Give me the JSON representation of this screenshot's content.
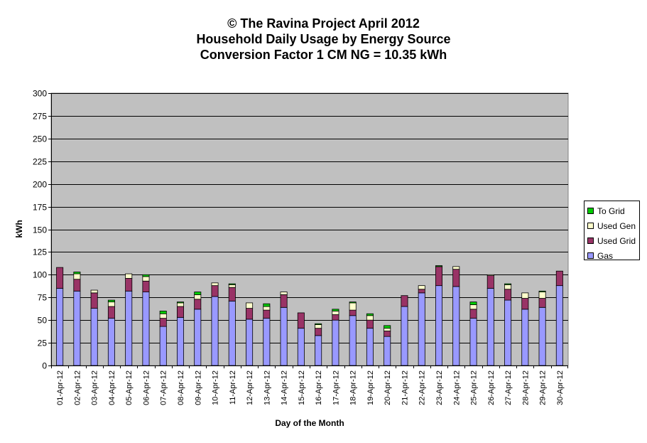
{
  "chart_data": {
    "type": "bar",
    "stacked": true,
    "title": [
      "© The Ravina Project April 2012",
      "Household Daily Usage by Energy Source",
      "Conversion Factor 1 CM NG = 10.35 kWh"
    ],
    "xlabel": "Day of the Month",
    "ylabel": "kWh",
    "ylim": [
      0,
      300
    ],
    "yticks": [
      0,
      25,
      50,
      75,
      100,
      125,
      150,
      175,
      200,
      225,
      250,
      275,
      300
    ],
    "grid": true,
    "plot_background": "#c0c0c0",
    "legend_position": "right",
    "categories": [
      "01-Apr-12",
      "02-Apr-12",
      "03-Apr-12",
      "04-Apr-12",
      "05-Apr-12",
      "06-Apr-12",
      "07-Apr-12",
      "08-Apr-12",
      "09-Apr-12",
      "10-Apr-12",
      "11-Apr-12",
      "12-Apr-12",
      "13-Apr-12",
      "14-Apr-12",
      "15-Apr-12",
      "16-Apr-12",
      "17-Apr-12",
      "18-Apr-12",
      "19-Apr-12",
      "20-Apr-12",
      "21-Apr-12",
      "22-Apr-12",
      "23-Apr-12",
      "24-Apr-12",
      "25-Apr-12",
      "26-Apr-12",
      "27-Apr-12",
      "28-Apr-12",
      "29-Apr-12",
      "30-Apr-12"
    ],
    "series": [
      {
        "name": "Gas",
        "color": "#9999ff",
        "values": [
          85,
          82,
          63,
          52,
          82,
          81,
          43,
          53,
          62,
          76,
          71,
          51,
          52,
          64,
          41,
          33,
          50,
          55,
          41,
          32,
          65,
          80,
          88,
          87,
          52,
          85,
          72,
          62,
          64,
          88
        ]
      },
      {
        "name": "Used Grid",
        "color": "#993366",
        "values": [
          23,
          13,
          17,
          13,
          14,
          12,
          9,
          12,
          11,
          12,
          15,
          12,
          9,
          14,
          17,
          8,
          6,
          6,
          9,
          6,
          12,
          4,
          21,
          19,
          10,
          14,
          12,
          12,
          10,
          16
        ]
      },
      {
        "name": "Used Gen",
        "color": "#ffffcc",
        "values": [
          0,
          6,
          3,
          5,
          5,
          5,
          5,
          4,
          5,
          3,
          3,
          6,
          4,
          3,
          0,
          4,
          4,
          8,
          5,
          3,
          0,
          4,
          0,
          3,
          5,
          1,
          5,
          6,
          7,
          0
        ]
      },
      {
        "name": "To Grid",
        "color": "#00cc00",
        "values": [
          0,
          2,
          0,
          2,
          0,
          2,
          3,
          1,
          3,
          0,
          1,
          0,
          3,
          0,
          0,
          1,
          2,
          1,
          2,
          3,
          0,
          0,
          1,
          0,
          3,
          0,
          1,
          0,
          1,
          0
        ]
      }
    ]
  }
}
